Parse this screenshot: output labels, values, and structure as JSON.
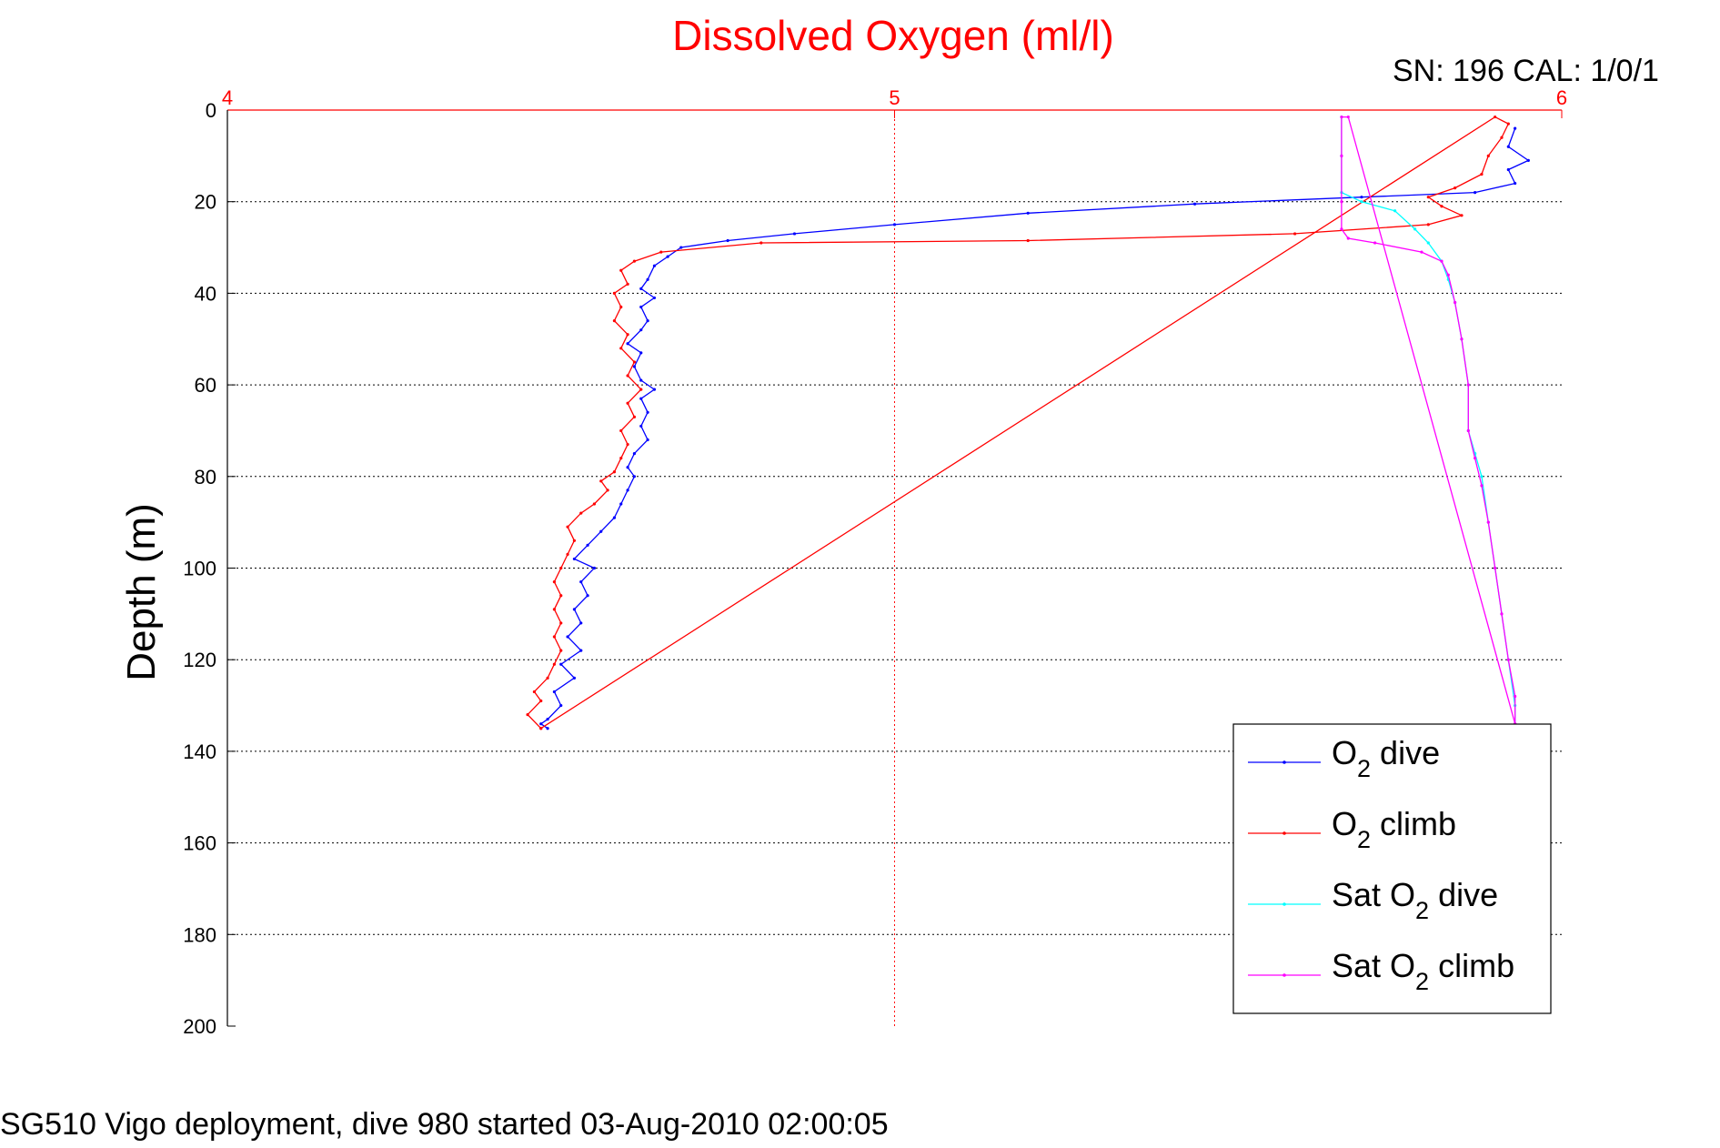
{
  "chart_data": {
    "type": "line",
    "title": "Dissolved Oxygen (ml/l)",
    "annotation": "SN: 196  CAL: 1/0/1",
    "footer": "SG510 Vigo deployment, dive 980 started 03-Aug-2010 02:00:05",
    "ylabel": "Depth (m)",
    "xlabel": "",
    "xlim": [
      4,
      6
    ],
    "ylim": [
      0,
      200
    ],
    "y_reversed": true,
    "x_axis_position": "top",
    "xticks": [
      "4",
      "5",
      "6"
    ],
    "yticks": [
      "0",
      "20",
      "40",
      "60",
      "80",
      "100",
      "120",
      "140",
      "160",
      "180",
      "200"
    ],
    "grid": true,
    "legend_position": "bottom-right",
    "axis_color": "#ff0000",
    "series": [
      {
        "name": "O2 dive",
        "label_main": "O",
        "label_sub": "2",
        "label_rest": " dive",
        "color": "#0000ff",
        "points": [
          [
            5.93,
            4
          ],
          [
            5.92,
            8
          ],
          [
            5.95,
            11
          ],
          [
            5.92,
            13
          ],
          [
            5.93,
            16
          ],
          [
            5.87,
            18
          ],
          [
            5.7,
            19
          ],
          [
            5.45,
            20.5
          ],
          [
            5.2,
            22.5
          ],
          [
            5.0,
            25
          ],
          [
            4.85,
            27
          ],
          [
            4.75,
            28.5
          ],
          [
            4.68,
            30
          ],
          [
            4.66,
            32
          ],
          [
            4.64,
            34
          ],
          [
            4.63,
            37
          ],
          [
            4.62,
            39
          ],
          [
            4.64,
            41
          ],
          [
            4.62,
            43
          ],
          [
            4.63,
            46
          ],
          [
            4.62,
            48
          ],
          [
            4.6,
            51
          ],
          [
            4.62,
            53
          ],
          [
            4.61,
            56
          ],
          [
            4.62,
            59
          ],
          [
            4.64,
            61
          ],
          [
            4.62,
            63
          ],
          [
            4.63,
            66
          ],
          [
            4.62,
            69
          ],
          [
            4.63,
            72
          ],
          [
            4.61,
            75
          ],
          [
            4.6,
            78
          ],
          [
            4.61,
            80
          ],
          [
            4.6,
            83
          ],
          [
            4.59,
            86
          ],
          [
            4.58,
            89
          ],
          [
            4.56,
            92
          ],
          [
            4.54,
            95
          ],
          [
            4.52,
            98
          ],
          [
            4.55,
            100
          ],
          [
            4.53,
            103
          ],
          [
            4.54,
            106
          ],
          [
            4.52,
            109
          ],
          [
            4.53,
            112
          ],
          [
            4.51,
            115
          ],
          [
            4.53,
            118
          ],
          [
            4.5,
            121
          ],
          [
            4.52,
            124
          ],
          [
            4.49,
            127
          ],
          [
            4.5,
            130
          ],
          [
            4.48,
            133
          ],
          [
            4.47,
            134
          ],
          [
            4.48,
            135
          ]
        ]
      },
      {
        "name": "O2 climb",
        "label_main": "O",
        "label_sub": "2",
        "label_rest": " climb",
        "color": "#ff0000",
        "points": [
          [
            4.47,
            135
          ],
          [
            4.45,
            132
          ],
          [
            4.47,
            129
          ],
          [
            4.46,
            127
          ],
          [
            4.48,
            124
          ],
          [
            4.49,
            121
          ],
          [
            4.5,
            118
          ],
          [
            4.49,
            115
          ],
          [
            4.5,
            112
          ],
          [
            4.49,
            109
          ],
          [
            4.5,
            106
          ],
          [
            4.49,
            103
          ],
          [
            4.5,
            100
          ],
          [
            4.51,
            97
          ],
          [
            4.52,
            94
          ],
          [
            4.51,
            91
          ],
          [
            4.53,
            88
          ],
          [
            4.55,
            86
          ],
          [
            4.57,
            83
          ],
          [
            4.56,
            81
          ],
          [
            4.58,
            79
          ],
          [
            4.59,
            76
          ],
          [
            4.6,
            73
          ],
          [
            4.59,
            70
          ],
          [
            4.61,
            67
          ],
          [
            4.6,
            64
          ],
          [
            4.62,
            61
          ],
          [
            4.6,
            58
          ],
          [
            4.61,
            55
          ],
          [
            4.59,
            52
          ],
          [
            4.6,
            49
          ],
          [
            4.58,
            46
          ],
          [
            4.59,
            43
          ],
          [
            4.58,
            40
          ],
          [
            4.6,
            38
          ],
          [
            4.59,
            35
          ],
          [
            4.61,
            33
          ],
          [
            4.65,
            31
          ],
          [
            4.8,
            29
          ],
          [
            5.2,
            28.5
          ],
          [
            5.6,
            27
          ],
          [
            5.8,
            25
          ],
          [
            5.85,
            23
          ],
          [
            5.82,
            21
          ],
          [
            5.8,
            19
          ],
          [
            5.84,
            17
          ],
          [
            5.88,
            14
          ],
          [
            5.89,
            10
          ],
          [
            5.91,
            6
          ],
          [
            5.92,
            3
          ],
          [
            5.9,
            1.5
          ],
          [
            4.47,
            135
          ]
        ]
      },
      {
        "name": "Sat O2 dive",
        "label_main": "Sat O",
        "label_sub": "2",
        "label_rest": " dive",
        "color": "#00ffff",
        "points": [
          [
            5.67,
            1.5
          ],
          [
            5.67,
            10
          ],
          [
            5.67,
            18
          ],
          [
            5.7,
            20
          ],
          [
            5.75,
            22
          ],
          [
            5.78,
            26
          ],
          [
            5.8,
            29
          ],
          [
            5.82,
            33
          ],
          [
            5.83,
            37
          ],
          [
            5.84,
            42
          ],
          [
            5.85,
            50
          ],
          [
            5.86,
            60
          ],
          [
            5.86,
            70
          ],
          [
            5.87,
            75
          ],
          [
            5.88,
            80
          ],
          [
            5.89,
            90
          ],
          [
            5.9,
            100
          ],
          [
            5.91,
            110
          ],
          [
            5.92,
            120
          ],
          [
            5.93,
            130
          ],
          [
            5.93,
            134
          ]
        ]
      },
      {
        "name": "Sat O2 climb",
        "label_main": "Sat O",
        "label_sub": "2",
        "label_rest": " climb",
        "color": "#ff00ff",
        "points": [
          [
            5.93,
            134
          ],
          [
            5.68,
            1.5
          ],
          [
            5.67,
            1.5
          ],
          [
            5.67,
            10
          ],
          [
            5.67,
            20
          ],
          [
            5.67,
            26
          ],
          [
            5.68,
            28
          ],
          [
            5.72,
            29
          ],
          [
            5.79,
            31
          ],
          [
            5.82,
            33
          ],
          [
            5.83,
            36
          ],
          [
            5.84,
            42
          ],
          [
            5.85,
            50
          ],
          [
            5.86,
            60
          ],
          [
            5.86,
            70
          ],
          [
            5.87,
            76
          ],
          [
            5.88,
            82
          ],
          [
            5.89,
            90
          ],
          [
            5.9,
            100
          ],
          [
            5.91,
            110
          ],
          [
            5.92,
            120
          ],
          [
            5.93,
            128
          ],
          [
            5.93,
            134
          ]
        ]
      }
    ]
  }
}
